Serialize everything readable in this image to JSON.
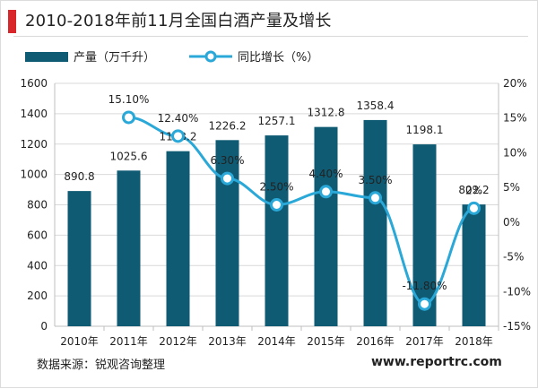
{
  "title": "2010-2018年前11月全国白酒产量及增长",
  "source": "数据来源：锐观咨询整理",
  "site": "www.reportrc.com",
  "colors": {
    "accent": "#d9262b",
    "bar": "#0f5b74",
    "line": "#2aa8d8",
    "grid": "#d9d9d9",
    "axis": "#bfbfbf",
    "text": "#222222"
  },
  "chart_data": {
    "type": "bar",
    "categories": [
      "2010年",
      "2011年",
      "2012年",
      "2013年",
      "2014年",
      "2015年",
      "2016年",
      "2017年",
      "2018年"
    ],
    "series": [
      {
        "name": "产量（万千升）",
        "type": "bar",
        "values": [
          890.8,
          1025.6,
          1153.2,
          1226.2,
          1257.1,
          1312.8,
          1358.4,
          1198.1,
          802.2
        ],
        "labels": [
          "890.8",
          "1025.6",
          "1153.2",
          "1226.2",
          "1257.1",
          "1312.8",
          "1358.4",
          "1198.1",
          "802.2"
        ]
      },
      {
        "name": "同比增长（%）",
        "type": "line",
        "values": [
          null,
          15.1,
          12.4,
          6.3,
          2.5,
          4.4,
          3.5,
          -11.8,
          2.0
        ],
        "labels": [
          "",
          "15.10%",
          "12.40%",
          "6.30%",
          "2.50%",
          "4.40%",
          "3.50%",
          "-11.80%",
          "2%"
        ]
      }
    ],
    "y_left": {
      "min": 0,
      "max": 1600,
      "ticks": [
        0,
        200,
        400,
        600,
        800,
        1000,
        1200,
        1400,
        1600
      ],
      "tick_labels": [
        "0",
        "200",
        "400",
        "600",
        "800",
        "1000",
        "1200",
        "1400",
        "1600"
      ]
    },
    "y_right": {
      "min": -15,
      "max": 20,
      "ticks": [
        -15,
        -10,
        -5,
        0,
        5,
        10,
        15,
        20
      ],
      "tick_labels": [
        "-15%",
        "-10%",
        "-5%",
        "0%",
        "5%",
        "10%",
        "15%",
        "20%"
      ]
    },
    "grid": true,
    "legend": "top-left"
  }
}
